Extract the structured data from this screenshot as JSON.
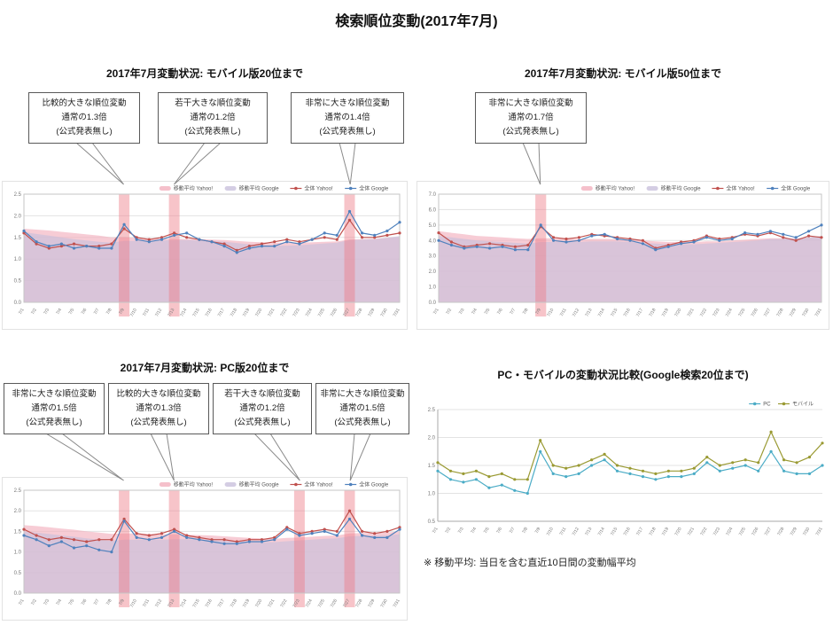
{
  "page_title": "検索順位変動(2017年7月)",
  "footnote": "※ 移動平均: 当日を含む直近10日間の変動幅平均",
  "colors": {
    "band": "#ed7d87",
    "yahoo_line": "#c0504d",
    "google_line": "#4f81bd",
    "ma_yahoo_area": "#f2b0be",
    "ma_google_area": "#c9c0dc",
    "pc_line": "#4bacc6",
    "mobile_line": "#9a9a33"
  },
  "days": [
    "7/1",
    "7/2",
    "7/3",
    "7/4",
    "7/5",
    "7/6",
    "7/7",
    "7/8",
    "7/9",
    "7/10",
    "7/11",
    "7/12",
    "7/13",
    "7/14",
    "7/15",
    "7/16",
    "7/17",
    "7/18",
    "7/19",
    "7/20",
    "7/21",
    "7/22",
    "7/23",
    "7/24",
    "7/25",
    "7/26",
    "7/27",
    "7/28",
    "7/29",
    "7/30",
    "7/31"
  ],
  "chart_data": [
    {
      "type": "line",
      "title": "2017年7月変動状況: モバイル版20位まで",
      "ylim": [
        0,
        2.5
      ],
      "ytick": 0.5,
      "areas": [
        {
          "name": "移動平均 Yahoo!",
          "color": "#f2b0be",
          "values": [
            1.7,
            1.68,
            1.66,
            1.63,
            1.6,
            1.57,
            1.54,
            1.5,
            1.5,
            1.49,
            1.48,
            1.47,
            1.47,
            1.46,
            1.46,
            1.45,
            1.44,
            1.42,
            1.4,
            1.39,
            1.38,
            1.38,
            1.38,
            1.39,
            1.4,
            1.41,
            1.45,
            1.46,
            1.47,
            1.49,
            1.5
          ]
        },
        {
          "name": "移動平均 Google",
          "color": "#c9c0dc",
          "values": [
            1.62,
            1.58,
            1.54,
            1.5,
            1.46,
            1.43,
            1.4,
            1.38,
            1.42,
            1.42,
            1.42,
            1.43,
            1.44,
            1.44,
            1.43,
            1.42,
            1.4,
            1.37,
            1.34,
            1.32,
            1.31,
            1.31,
            1.32,
            1.34,
            1.36,
            1.38,
            1.44,
            1.45,
            1.46,
            1.49,
            1.53
          ]
        }
      ],
      "series": [
        {
          "name": "全体 Yahoo!",
          "color": "#c0504d",
          "values": [
            1.6,
            1.35,
            1.25,
            1.3,
            1.35,
            1.3,
            1.3,
            1.35,
            1.7,
            1.5,
            1.45,
            1.5,
            1.6,
            1.5,
            1.45,
            1.4,
            1.35,
            1.2,
            1.3,
            1.35,
            1.4,
            1.45,
            1.4,
            1.45,
            1.5,
            1.45,
            1.9,
            1.5,
            1.5,
            1.55,
            1.6
          ]
        },
        {
          "name": "全体 Google",
          "color": "#4f81bd",
          "values": [
            1.65,
            1.4,
            1.3,
            1.35,
            1.25,
            1.3,
            1.25,
            1.25,
            1.8,
            1.45,
            1.4,
            1.45,
            1.55,
            1.6,
            1.45,
            1.4,
            1.3,
            1.15,
            1.25,
            1.3,
            1.3,
            1.4,
            1.35,
            1.45,
            1.6,
            1.55,
            2.1,
            1.6,
            1.55,
            1.65,
            1.85
          ]
        }
      ],
      "bands": [
        8,
        12,
        26
      ],
      "callouts": [
        {
          "line1": "比較的大きな順位変動",
          "line2": "通常の1.3倍",
          "line3": "(公式発表無し)"
        },
        {
          "line1": "若干大きな順位変動",
          "line2": "通常の1.2倍",
          "line3": "(公式発表無し)"
        },
        {
          "line1": "非常に大きな順位変動",
          "line2": "通常の1.4倍",
          "line3": "(公式発表無し)"
        }
      ]
    },
    {
      "type": "line",
      "title": "2017年7月変動状況: モバイル版50位まで",
      "ylim": [
        0,
        7
      ],
      "ytick": 1,
      "areas": [
        {
          "name": "移動平均 Yahoo!",
          "color": "#f2b0be",
          "values": [
            4.6,
            4.5,
            4.4,
            4.3,
            4.25,
            4.2,
            4.15,
            4.1,
            4.15,
            4.15,
            4.1,
            4.1,
            4.1,
            4.1,
            4.1,
            4.05,
            4.0,
            3.95,
            3.9,
            3.9,
            3.9,
            3.95,
            3.95,
            4.0,
            4.05,
            4.1,
            4.15,
            4.15,
            4.15,
            4.2,
            4.2
          ]
        },
        {
          "name": "移動平均 Google",
          "color": "#c9c0dc",
          "values": [
            4.3,
            4.2,
            4.1,
            4.0,
            3.95,
            3.9,
            3.85,
            3.8,
            3.9,
            3.9,
            3.9,
            3.9,
            3.95,
            3.95,
            3.95,
            3.9,
            3.85,
            3.8,
            3.75,
            3.75,
            3.75,
            3.8,
            3.85,
            3.9,
            3.95,
            4.0,
            4.1,
            4.1,
            4.15,
            4.2,
            4.3
          ]
        }
      ],
      "series": [
        {
          "name": "全体 Yahoo!",
          "color": "#c0504d",
          "values": [
            4.5,
            3.9,
            3.6,
            3.7,
            3.8,
            3.7,
            3.6,
            3.7,
            4.9,
            4.2,
            4.1,
            4.2,
            4.4,
            4.3,
            4.2,
            4.1,
            4.0,
            3.5,
            3.7,
            3.9,
            4.0,
            4.3,
            4.1,
            4.2,
            4.4,
            4.3,
            4.5,
            4.2,
            4.0,
            4.3,
            4.2
          ]
        },
        {
          "name": "全体 Google",
          "color": "#4f81bd",
          "values": [
            4.0,
            3.7,
            3.5,
            3.6,
            3.5,
            3.6,
            3.4,
            3.4,
            5.0,
            4.0,
            3.9,
            4.0,
            4.3,
            4.4,
            4.1,
            4.0,
            3.8,
            3.4,
            3.6,
            3.8,
            3.9,
            4.2,
            4.0,
            4.1,
            4.5,
            4.4,
            4.6,
            4.4,
            4.2,
            4.6,
            5.0
          ]
        }
      ],
      "bands": [
        8
      ],
      "callouts": [
        {
          "line1": "非常に大きな順位変動",
          "line2": "通常の1.7倍",
          "line3": "(公式発表無し)"
        }
      ]
    },
    {
      "type": "line",
      "title": "2017年7月変動状況: PC版20位まで",
      "ylim": [
        0,
        2.5
      ],
      "ytick": 0.5,
      "areas": [
        {
          "name": "移動平均 Yahoo!",
          "color": "#f2b0be",
          "values": [
            1.65,
            1.63,
            1.6,
            1.57,
            1.54,
            1.5,
            1.47,
            1.44,
            1.45,
            1.45,
            1.44,
            1.43,
            1.43,
            1.42,
            1.41,
            1.4,
            1.38,
            1.36,
            1.34,
            1.33,
            1.32,
            1.34,
            1.35,
            1.37,
            1.39,
            1.4,
            1.45,
            1.46,
            1.46,
            1.47,
            1.5
          ]
        },
        {
          "name": "移動平均 Google",
          "color": "#c9c0dc",
          "values": [
            1.5,
            1.47,
            1.44,
            1.4,
            1.37,
            1.33,
            1.3,
            1.27,
            1.3,
            1.3,
            1.3,
            1.3,
            1.31,
            1.31,
            1.3,
            1.29,
            1.27,
            1.26,
            1.25,
            1.24,
            1.24,
            1.26,
            1.28,
            1.3,
            1.32,
            1.33,
            1.38,
            1.39,
            1.39,
            1.4,
            1.43
          ]
        }
      ],
      "series": [
        {
          "name": "全体 Yahoo!",
          "color": "#c0504d",
          "values": [
            1.55,
            1.4,
            1.3,
            1.35,
            1.3,
            1.25,
            1.3,
            1.3,
            1.8,
            1.45,
            1.4,
            1.45,
            1.55,
            1.4,
            1.35,
            1.3,
            1.3,
            1.25,
            1.3,
            1.3,
            1.35,
            1.6,
            1.45,
            1.5,
            1.55,
            1.5,
            2.0,
            1.5,
            1.45,
            1.5,
            1.6
          ]
        },
        {
          "name": "全体 Google",
          "color": "#4f81bd",
          "values": [
            1.4,
            1.3,
            1.15,
            1.25,
            1.1,
            1.15,
            1.05,
            1.0,
            1.75,
            1.35,
            1.3,
            1.35,
            1.5,
            1.35,
            1.3,
            1.25,
            1.2,
            1.2,
            1.25,
            1.25,
            1.3,
            1.55,
            1.4,
            1.45,
            1.5,
            1.4,
            1.8,
            1.4,
            1.35,
            1.35,
            1.55
          ]
        }
      ],
      "bands": [
        8,
        12,
        22,
        26
      ],
      "callouts": [
        {
          "line1": "非常に大きな順位変動",
          "line2": "通常の1.5倍",
          "line3": "(公式発表無し)"
        },
        {
          "line1": "比較的大きな順位変動",
          "line2": "通常の1.3倍",
          "line3": "(公式発表無し)"
        },
        {
          "line1": "若干大きな順位変動",
          "line2": "通常の1.2倍",
          "line3": "(公式発表無し)"
        },
        {
          "line1": "非常に大きな順位変動",
          "line2": "通常の1.5倍",
          "line3": "(公式発表無し)"
        }
      ]
    },
    {
      "type": "line",
      "title": "PC・モバイルの変動状況比較(Google検索20位まで)",
      "ylim": [
        0.5,
        2.5
      ],
      "ytick": 0.5,
      "frame": false,
      "series": [
        {
          "name": "PC",
          "color": "#4bacc6",
          "values": [
            1.4,
            1.25,
            1.2,
            1.25,
            1.1,
            1.15,
            1.05,
            1.0,
            1.75,
            1.35,
            1.3,
            1.35,
            1.5,
            1.6,
            1.4,
            1.35,
            1.3,
            1.25,
            1.3,
            1.3,
            1.35,
            1.55,
            1.4,
            1.45,
            1.5,
            1.4,
            1.75,
            1.4,
            1.35,
            1.35,
            1.5
          ]
        },
        {
          "name": "モバイル",
          "color": "#9a9a33",
          "values": [
            1.55,
            1.4,
            1.35,
            1.4,
            1.3,
            1.35,
            1.25,
            1.25,
            1.95,
            1.5,
            1.45,
            1.5,
            1.6,
            1.7,
            1.5,
            1.45,
            1.4,
            1.35,
            1.4,
            1.4,
            1.45,
            1.65,
            1.5,
            1.55,
            1.6,
            1.55,
            2.1,
            1.6,
            1.55,
            1.65,
            1.9
          ]
        }
      ],
      "bands": [],
      "callouts": []
    }
  ]
}
